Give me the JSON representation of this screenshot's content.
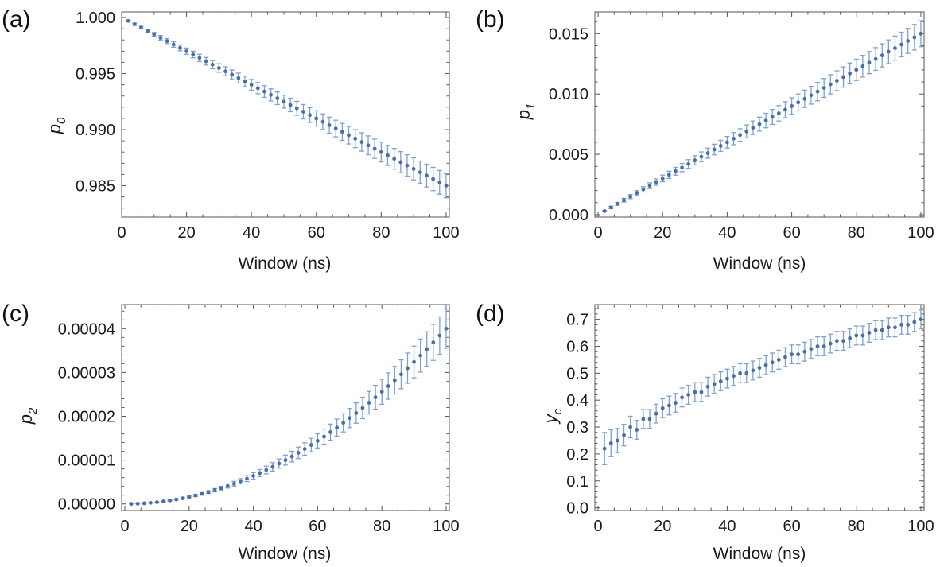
{
  "chart_data": [
    {
      "panel_label": "(a)",
      "type": "scatter",
      "ylabel_main": "p",
      "ylabel_sub": "0",
      "xlabel": "Window (ns)",
      "xlim": [
        0,
        101
      ],
      "ylim": [
        0.9822,
        1.0005
      ],
      "xticks": [
        0,
        20,
        40,
        60,
        80,
        100
      ],
      "xtick_labels": [
        "0",
        "20",
        "40",
        "60",
        "80",
        "100"
      ],
      "yticks": [
        0.985,
        0.99,
        0.995,
        1.0
      ],
      "ytick_labels": [
        "0.985",
        "0.990",
        "0.995",
        "1.000"
      ],
      "x": [
        2,
        4,
        6,
        8,
        10,
        12,
        14,
        16,
        18,
        20,
        22,
        24,
        26,
        28,
        30,
        32,
        34,
        36,
        38,
        40,
        42,
        44,
        46,
        48,
        50,
        52,
        54,
        56,
        58,
        60,
        62,
        64,
        66,
        68,
        70,
        72,
        74,
        76,
        78,
        80,
        82,
        84,
        86,
        88,
        90,
        92,
        94,
        96,
        98,
        100
      ],
      "y": [
        0.9997,
        0.9994,
        0.9991,
        0.9988,
        0.9985,
        0.9982,
        0.9979,
        0.9976,
        0.9973,
        0.997,
        0.9967,
        0.9964,
        0.9961,
        0.9958,
        0.9955,
        0.9952,
        0.9949,
        0.9946,
        0.9943,
        0.994,
        0.9937,
        0.9934,
        0.9931,
        0.9928,
        0.9925,
        0.9922,
        0.9919,
        0.9916,
        0.9913,
        0.991,
        0.9907,
        0.9904,
        0.9901,
        0.9898,
        0.9895,
        0.9892,
        0.9889,
        0.9886,
        0.9883,
        0.988,
        0.9877,
        0.9874,
        0.9871,
        0.9868,
        0.9865,
        0.9862,
        0.9859,
        0.9856,
        0.9853,
        0.985
      ],
      "err": [
        5e-05,
        0.0001,
        0.00012,
        0.00015,
        0.00017,
        0.0002,
        0.00022,
        0.00024,
        0.00026,
        0.00028,
        0.0003,
        0.00032,
        0.00034,
        0.00036,
        0.00038,
        0.0004,
        0.00042,
        0.00044,
        0.00046,
        0.00048,
        0.0005,
        0.00052,
        0.00054,
        0.00056,
        0.00058,
        0.0006,
        0.00062,
        0.00064,
        0.00066,
        0.00068,
        0.0007,
        0.00072,
        0.00074,
        0.00076,
        0.00078,
        0.0008,
        0.00082,
        0.00084,
        0.00086,
        0.00088,
        0.0009,
        0.00092,
        0.00094,
        0.00096,
        0.00098,
        0.001,
        0.00102,
        0.00104,
        0.00106,
        0.00108
      ]
    },
    {
      "panel_label": "(b)",
      "type": "scatter",
      "ylabel_main": "p",
      "ylabel_sub": "1",
      "xlabel": "Window (ns)",
      "xlim": [
        -1,
        101
      ],
      "ylim": [
        -0.0002,
        0.0168
      ],
      "xticks": [
        0,
        20,
        40,
        60,
        80,
        100
      ],
      "xtick_labels": [
        "0",
        "20",
        "40",
        "60",
        "80",
        "100"
      ],
      "yticks": [
        0.0,
        0.005,
        0.01,
        0.015
      ],
      "ytick_labels": [
        "0.000",
        "0.005",
        "0.010",
        "0.015"
      ],
      "x": [
        2,
        4,
        6,
        8,
        10,
        12,
        14,
        16,
        18,
        20,
        22,
        24,
        26,
        28,
        30,
        32,
        34,
        36,
        38,
        40,
        42,
        44,
        46,
        48,
        50,
        52,
        54,
        56,
        58,
        60,
        62,
        64,
        66,
        68,
        70,
        72,
        74,
        76,
        78,
        80,
        82,
        84,
        86,
        88,
        90,
        92,
        94,
        96,
        98,
        100
      ],
      "y": [
        0.0003,
        0.0006,
        0.0009,
        0.0012,
        0.0015,
        0.0018,
        0.0021,
        0.0024,
        0.0027,
        0.003,
        0.0033,
        0.0036,
        0.0039,
        0.0042,
        0.0045,
        0.0048,
        0.0051,
        0.0054,
        0.0057,
        0.006,
        0.0063,
        0.0066,
        0.0069,
        0.0072,
        0.0075,
        0.0078,
        0.0081,
        0.0084,
        0.0087,
        0.009,
        0.0093,
        0.0096,
        0.0099,
        0.0102,
        0.0105,
        0.0108,
        0.0111,
        0.0114,
        0.0117,
        0.012,
        0.0123,
        0.0126,
        0.0129,
        0.0132,
        0.0135,
        0.0138,
        0.0141,
        0.0144,
        0.0147,
        0.015
      ],
      "err": [
        5e-05,
        0.0001,
        0.00012,
        0.00015,
        0.00017,
        0.0002,
        0.00022,
        0.00024,
        0.00026,
        0.00028,
        0.0003,
        0.00032,
        0.00034,
        0.00036,
        0.00038,
        0.0004,
        0.00042,
        0.00044,
        0.00046,
        0.00048,
        0.0005,
        0.00052,
        0.00054,
        0.00056,
        0.00058,
        0.0006,
        0.00062,
        0.00064,
        0.00066,
        0.00068,
        0.0007,
        0.00072,
        0.00074,
        0.00076,
        0.00078,
        0.0008,
        0.00082,
        0.00084,
        0.00086,
        0.00088,
        0.0009,
        0.00092,
        0.00094,
        0.00096,
        0.00098,
        0.001,
        0.00102,
        0.00104,
        0.00106,
        0.00108
      ]
    },
    {
      "panel_label": "(c)",
      "type": "scatter",
      "ylabel_main": "p",
      "ylabel_sub": "2",
      "xlabel": "Window (ns)",
      "xlim": [
        -1,
        101
      ],
      "ylim": [
        -1.5e-06,
        4.55e-05
      ],
      "xticks": [
        0,
        20,
        40,
        60,
        80,
        100
      ],
      "xtick_labels": [
        "0",
        "20",
        "40",
        "60",
        "80",
        "100"
      ],
      "yticks": [
        0,
        1e-05,
        2e-05,
        3e-05,
        4e-05
      ],
      "ytick_labels": [
        "0.00000",
        "0.00001",
        "0.00002",
        "0.00003",
        "0.00004"
      ],
      "x": [
        2,
        4,
        6,
        8,
        10,
        12,
        14,
        16,
        18,
        20,
        22,
        24,
        26,
        28,
        30,
        32,
        34,
        36,
        38,
        40,
        42,
        44,
        46,
        48,
        50,
        52,
        54,
        56,
        58,
        60,
        62,
        64,
        66,
        68,
        70,
        72,
        74,
        76,
        78,
        80,
        82,
        84,
        86,
        88,
        90,
        92,
        94,
        96,
        98,
        100
      ],
      "y": [
        1.6e-08,
        6.4e-08,
        1.44e-07,
        2.56e-07,
        4e-07,
        5.76e-07,
        7.84e-07,
        1.024e-06,
        1.296e-06,
        1.6e-06,
        1.936e-06,
        2.304e-06,
        2.704e-06,
        3.136e-06,
        3.6e-06,
        4.096e-06,
        4.624e-06,
        5.184e-06,
        5.776e-06,
        6.4e-06,
        7.056e-06,
        7.744e-06,
        8.464e-06,
        9.216e-06,
        1e-05,
        1.0816e-05,
        1.1664e-05,
        1.2544e-05,
        1.3456e-05,
        1.44e-05,
        1.5376e-05,
        1.6384e-05,
        1.7424e-05,
        1.8496e-05,
        1.96e-05,
        2.0736e-05,
        2.1904e-05,
        2.3104e-05,
        2.4336e-05,
        2.56e-05,
        2.6896e-05,
        2.8224e-05,
        2.9584e-05,
        3.0976e-05,
        3.24e-05,
        3.3856e-05,
        3.5344e-05,
        3.6864e-05,
        3.8416e-05,
        4e-05
      ],
      "err": [
        8e-09,
        1.6e-08,
        2.7e-08,
        4.2e-08,
        6e-08,
        8.1e-08,
        1.06e-07,
        1.34e-07,
        1.65e-07,
        2e-07,
        2.38e-07,
        2.8e-07,
        3.24e-07,
        3.72e-07,
        4.24e-07,
        4.79e-07,
        5.37e-07,
        5.99e-07,
        6.65e-07,
        7.34e-07,
        8.06e-07,
        8.82e-07,
        9.62e-07,
        1.045e-06,
        1.132e-06,
        1.222e-06,
        1.315e-06,
        1.413e-06,
        1.513e-06,
        1.618e-06,
        1.725e-06,
        1.837e-06,
        1.952e-06,
        2.07e-06,
        2.192e-06,
        2.318e-06,
        2.447e-06,
        2.58e-06,
        2.717e-06,
        2.857e-06,
        3.001e-06,
        3.148e-06,
        3.299e-06,
        3.454e-06,
        3.613e-06,
        3.775e-06,
        3.941e-06,
        4.11e-06,
        4.283e-06,
        4.46e-06
      ]
    },
    {
      "panel_label": "(d)",
      "type": "scatter",
      "ylabel_main": "y",
      "ylabel_sub": "c",
      "xlabel": "Window (ns)",
      "xlim": [
        -1,
        101
      ],
      "ylim": [
        -0.01,
        0.755
      ],
      "xticks": [
        0,
        20,
        40,
        60,
        80,
        100
      ],
      "xtick_labels": [
        "0",
        "20",
        "40",
        "60",
        "80",
        "100"
      ],
      "yticks": [
        0.0,
        0.1,
        0.2,
        0.3,
        0.4,
        0.5,
        0.6,
        0.7
      ],
      "ytick_labels": [
        "0.0",
        "0.1",
        "0.2",
        "0.3",
        "0.4",
        "0.5",
        "0.6",
        "0.7"
      ],
      "x": [
        2,
        4,
        6,
        8,
        10,
        12,
        14,
        16,
        18,
        20,
        22,
        24,
        26,
        28,
        30,
        32,
        34,
        36,
        38,
        40,
        42,
        44,
        46,
        48,
        50,
        52,
        54,
        56,
        58,
        60,
        62,
        64,
        66,
        68,
        70,
        72,
        74,
        76,
        78,
        80,
        82,
        84,
        86,
        88,
        90,
        92,
        94,
        96,
        98,
        100
      ],
      "y": [
        0.22,
        0.24,
        0.25,
        0.27,
        0.3,
        0.29,
        0.33,
        0.33,
        0.35,
        0.37,
        0.38,
        0.39,
        0.41,
        0.42,
        0.43,
        0.43,
        0.45,
        0.46,
        0.47,
        0.48,
        0.49,
        0.5,
        0.5,
        0.51,
        0.52,
        0.53,
        0.54,
        0.55,
        0.56,
        0.57,
        0.57,
        0.58,
        0.59,
        0.6,
        0.6,
        0.61,
        0.62,
        0.62,
        0.63,
        0.64,
        0.64,
        0.65,
        0.66,
        0.66,
        0.67,
        0.67,
        0.68,
        0.68,
        0.69,
        0.7
      ],
      "err": [
        0.06,
        0.05,
        0.045,
        0.04,
        0.04,
        0.035,
        0.035,
        0.035,
        0.035,
        0.035,
        0.035,
        0.035,
        0.035,
        0.035,
        0.035,
        0.035,
        0.035,
        0.035,
        0.035,
        0.035,
        0.035,
        0.035,
        0.035,
        0.035,
        0.035,
        0.035,
        0.035,
        0.035,
        0.035,
        0.035,
        0.035,
        0.035,
        0.035,
        0.035,
        0.035,
        0.035,
        0.035,
        0.035,
        0.035,
        0.035,
        0.035,
        0.035,
        0.035,
        0.035,
        0.035,
        0.035,
        0.035,
        0.035,
        0.035,
        0.035
      ]
    }
  ],
  "style": {
    "marker_color": "#4a6fa5",
    "errorbar_color": "#7ea1d1",
    "axis_color": "#555555"
  }
}
